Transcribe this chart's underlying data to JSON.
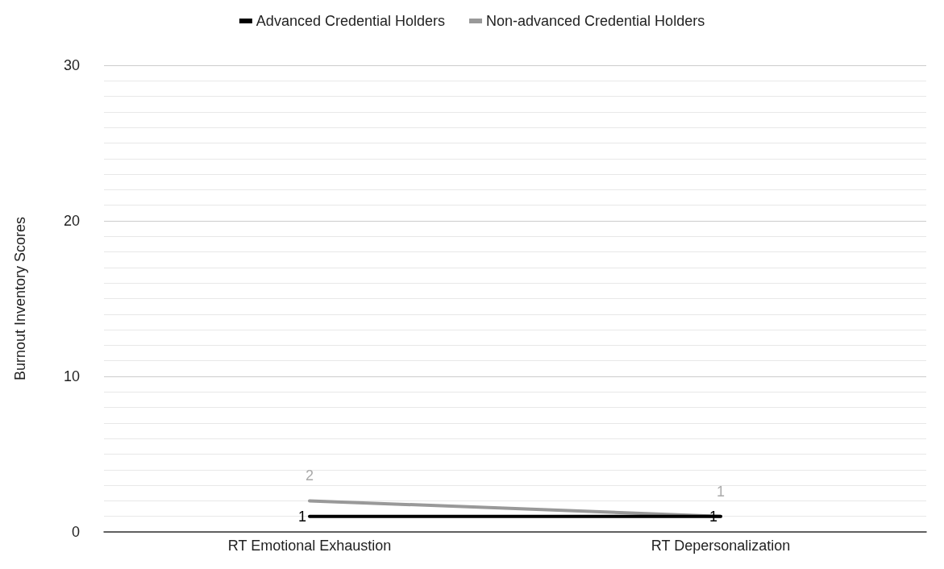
{
  "chart_data": {
    "type": "line",
    "ylabel": "Burnout Inventory Scores",
    "categories": [
      "RT Emotional Exhaustion",
      "RT Depersonalization"
    ],
    "series": [
      {
        "name": "Advanced Credential Holders",
        "color": "#000000",
        "values": [
          1,
          1
        ]
      },
      {
        "name": "Non-advanced Credential Holders",
        "color": "#999999",
        "values": [
          2,
          1
        ]
      }
    ],
    "ylim": [
      0,
      30
    ],
    "yticks": [
      0,
      10,
      20,
      30
    ],
    "grid": "y",
    "legend": "top",
    "marker": "none",
    "line_style": "solid",
    "data_labels": true
  }
}
